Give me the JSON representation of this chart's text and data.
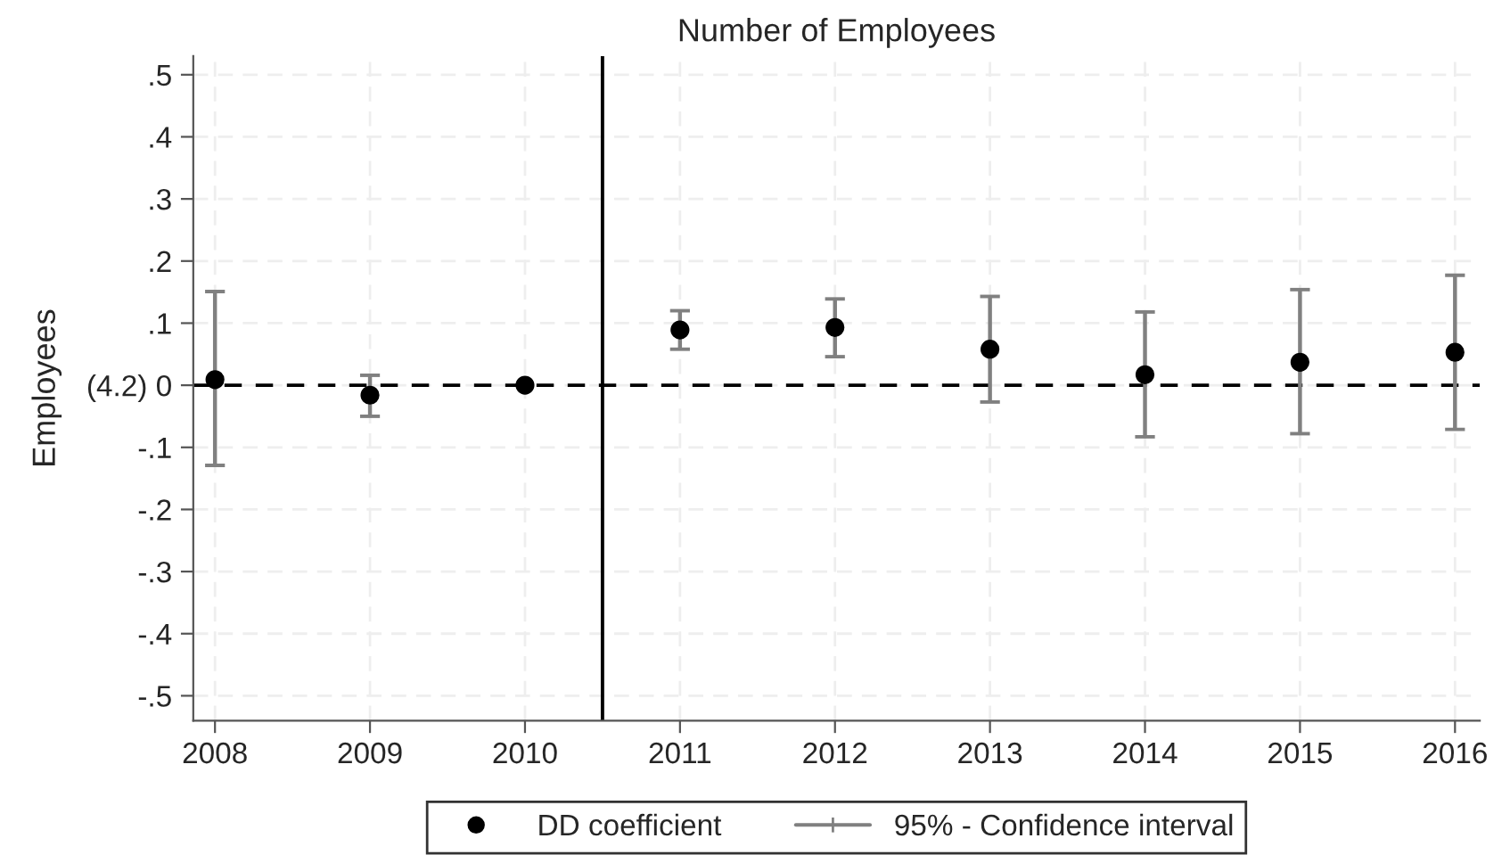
{
  "chart_data": {
    "type": "scatter",
    "title": "Number of Employees",
    "ylabel": "Employees",
    "x": [
      2008,
      2009,
      2010,
      2011,
      2012,
      2013,
      2014,
      2015,
      2016
    ],
    "series": [
      {
        "name": "DD coefficient",
        "color": "#000000",
        "values": [
          0.009,
          -0.016,
          0.0,
          0.089,
          0.093,
          0.058,
          0.017,
          0.037,
          0.053
        ],
        "errors": [
          [
            -0.129,
            0.151
          ],
          [
            -0.05,
            0.016
          ],
          null,
          [
            0.058,
            0.12
          ],
          [
            0.046,
            0.139
          ],
          [
            -0.027,
            0.143
          ],
          [
            -0.083,
            0.118
          ],
          [
            -0.078,
            0.154
          ],
          [
            -0.071,
            0.177
          ]
        ]
      }
    ],
    "annotations": [
      "95% - Confidence interval"
    ],
    "xlim": [
      2007.86,
      2016.16
    ],
    "xticks": [
      2008,
      2009,
      2010,
      2011,
      2012,
      2013,
      2014,
      2015,
      2016
    ],
    "ylim": [
      -0.54,
      0.53
    ],
    "yticks": [
      {
        "value": -0.5,
        "label": "-.5"
      },
      {
        "value": -0.4,
        "label": "-.4"
      },
      {
        "value": -0.3,
        "label": "-.3"
      },
      {
        "value": -0.2,
        "label": "-.2"
      },
      {
        "value": -0.1,
        "label": "-.1"
      },
      {
        "value": 0,
        "label": "(4.2) 0"
      },
      {
        "value": 0.1,
        "label": ".1"
      },
      {
        "value": 0.2,
        "label": ".2"
      },
      {
        "value": 0.3,
        "label": ".3"
      },
      {
        "value": 0.4,
        "label": ".4"
      },
      {
        "value": 0.5,
        "label": ".5"
      }
    ],
    "ref_lines": [
      {
        "axis": "y",
        "value": 0,
        "color": "#000000",
        "line_style": "dashed"
      },
      {
        "axis": "x",
        "value": 2010.5,
        "color": "#000000",
        "line_style": "solid"
      }
    ],
    "grid": true,
    "legend": "bottom",
    "marker": "circle"
  }
}
